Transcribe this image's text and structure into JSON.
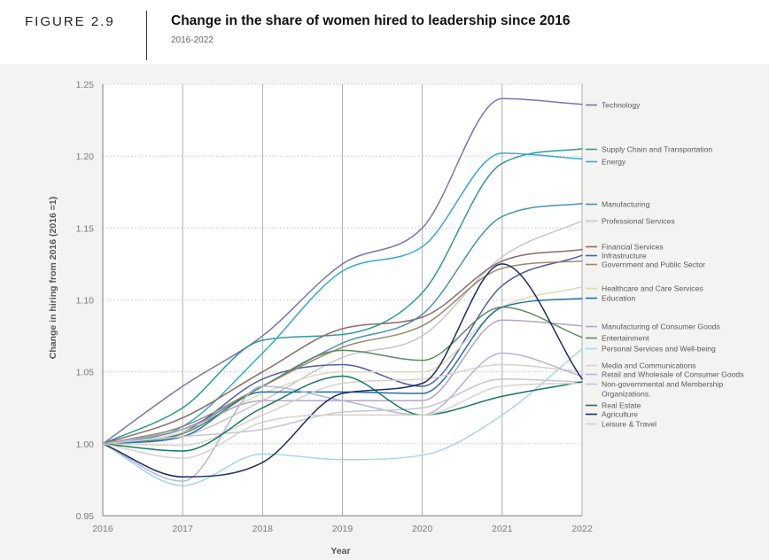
{
  "header": {
    "figure_label": "FIGURE 2.9",
    "title": "Change in the share of women hired to leadership since 2016",
    "subtitle": "2016-2022"
  },
  "chart_data": {
    "type": "line",
    "title": "Change in the share of women hired to leadership since 2016",
    "subtitle": "2016-2022",
    "xlabel": "Year",
    "ylabel": "Change in hiring from 2016 (2016 =1)",
    "x": [
      "2016",
      "2017",
      "2018",
      "2019",
      "2020",
      "2021",
      "2022"
    ],
    "ylim": [
      0.95,
      1.25
    ],
    "yticks": [
      "0.95",
      "1.00",
      "1.05",
      "1.10",
      "1.15",
      "1.20",
      "1.25"
    ],
    "grid": "dotted horizontal, solid vertical at each year",
    "legend_position": "right",
    "series": [
      {
        "name": "Technology",
        "color": "#7a74ad",
        "values": [
          1.0,
          1.04,
          1.075,
          1.125,
          1.15,
          1.24,
          1.236
        ]
      },
      {
        "name": "Supply Chain and Transportation",
        "color": "#2d9a95",
        "values": [
          1.0,
          1.025,
          1.072,
          1.076,
          1.105,
          1.195,
          1.205
        ]
      },
      {
        "name": "Energy",
        "color": "#35a9d6",
        "values": [
          1.0,
          1.012,
          1.063,
          1.12,
          1.137,
          1.202,
          1.198
        ]
      },
      {
        "name": "Manufacturing",
        "color": "#4a93b4",
        "values": [
          1.0,
          1.01,
          1.04,
          1.07,
          1.09,
          1.158,
          1.167
        ]
      },
      {
        "name": "Professional Services",
        "color": "#c6c6c6",
        "values": [
          1.0,
          1.005,
          1.03,
          1.06,
          1.075,
          1.13,
          1.155
        ]
      },
      {
        "name": "Financial Services",
        "color": "#8c6a66",
        "values": [
          1.0,
          1.018,
          1.05,
          1.08,
          1.088,
          1.127,
          1.135
        ]
      },
      {
        "name": "Infrastructure",
        "color": "#505ea2",
        "values": [
          1.0,
          1.008,
          1.045,
          1.055,
          1.04,
          1.11,
          1.131
        ]
      },
      {
        "name": "Government and Public Sector",
        "color": "#9c8a68",
        "values": [
          1.0,
          1.012,
          1.04,
          1.067,
          1.082,
          1.122,
          1.127
        ]
      },
      {
        "name": "Healthcare and Care Services",
        "color": "#dedbb8",
        "values": [
          1.0,
          1.008,
          1.035,
          1.05,
          1.05,
          1.095,
          1.109
        ]
      },
      {
        "name": "Education",
        "color": "#1f6fb3",
        "values": [
          1.0,
          1.005,
          1.036,
          1.036,
          1.035,
          1.095,
          1.101
        ]
      },
      {
        "name": "Manufacturing of Consumer Goods",
        "color": "#b3a5c4",
        "values": [
          1.0,
          1.01,
          1.03,
          1.03,
          1.03,
          1.086,
          1.082
        ]
      },
      {
        "name": "Entertainment",
        "color": "#5c8a62",
        "values": [
          1.0,
          1.007,
          1.04,
          1.065,
          1.058,
          1.095,
          1.074
        ]
      },
      {
        "name": "Personal Services and Well-being",
        "color": "#a7d6ea",
        "values": [
          1.0,
          0.971,
          0.993,
          0.989,
          0.992,
          1.02,
          1.066
        ]
      },
      {
        "name": "Media and Communications",
        "color": "#d8d2c8",
        "values": [
          1.0,
          0.999,
          1.02,
          1.042,
          1.045,
          1.055,
          1.05
        ]
      },
      {
        "name": "Retail and Wholesale of Consumer Goods",
        "color": "#b0b6d8",
        "values": [
          1.0,
          0.974,
          1.04,
          1.03,
          1.02,
          1.063,
          1.047
        ]
      },
      {
        "name": "Non-governmental and Membership Organizations",
        "color": "#c8c2d6",
        "values": [
          1.0,
          1.005,
          1.01,
          1.022,
          1.025,
          1.045,
          1.043
        ]
      },
      {
        "name": "Real Estate",
        "color": "#137a61",
        "values": [
          1.0,
          0.995,
          1.025,
          1.047,
          1.02,
          1.033,
          1.043
        ]
      },
      {
        "name": "Agriculture",
        "color": "#1e2f5e",
        "values": [
          1.0,
          0.977,
          0.987,
          1.035,
          1.042,
          1.125,
          1.045
        ]
      },
      {
        "name": "Leisure & Travel",
        "color": "#d6d2c6",
        "values": [
          1.0,
          0.99,
          1.015,
          1.02,
          1.02,
          1.04,
          1.042
        ]
      }
    ]
  }
}
